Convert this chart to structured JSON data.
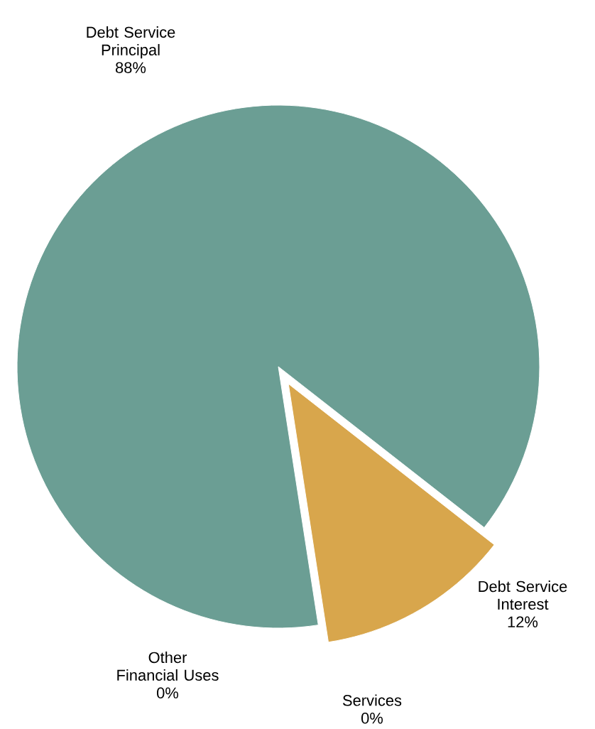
{
  "chart_data": {
    "type": "pie",
    "categories": [
      "Debt Service Principal",
      "Debt Service Interest",
      "Services",
      "Other Financial Uses"
    ],
    "values": [
      88,
      12,
      0,
      0
    ],
    "value_labels": [
      "88%",
      "12%",
      "0%",
      "0%"
    ],
    "colors": [
      "#6b9e94",
      "#d8a64c",
      "#8fa8c8",
      "#b0b0b0"
    ],
    "legend": false
  }
}
